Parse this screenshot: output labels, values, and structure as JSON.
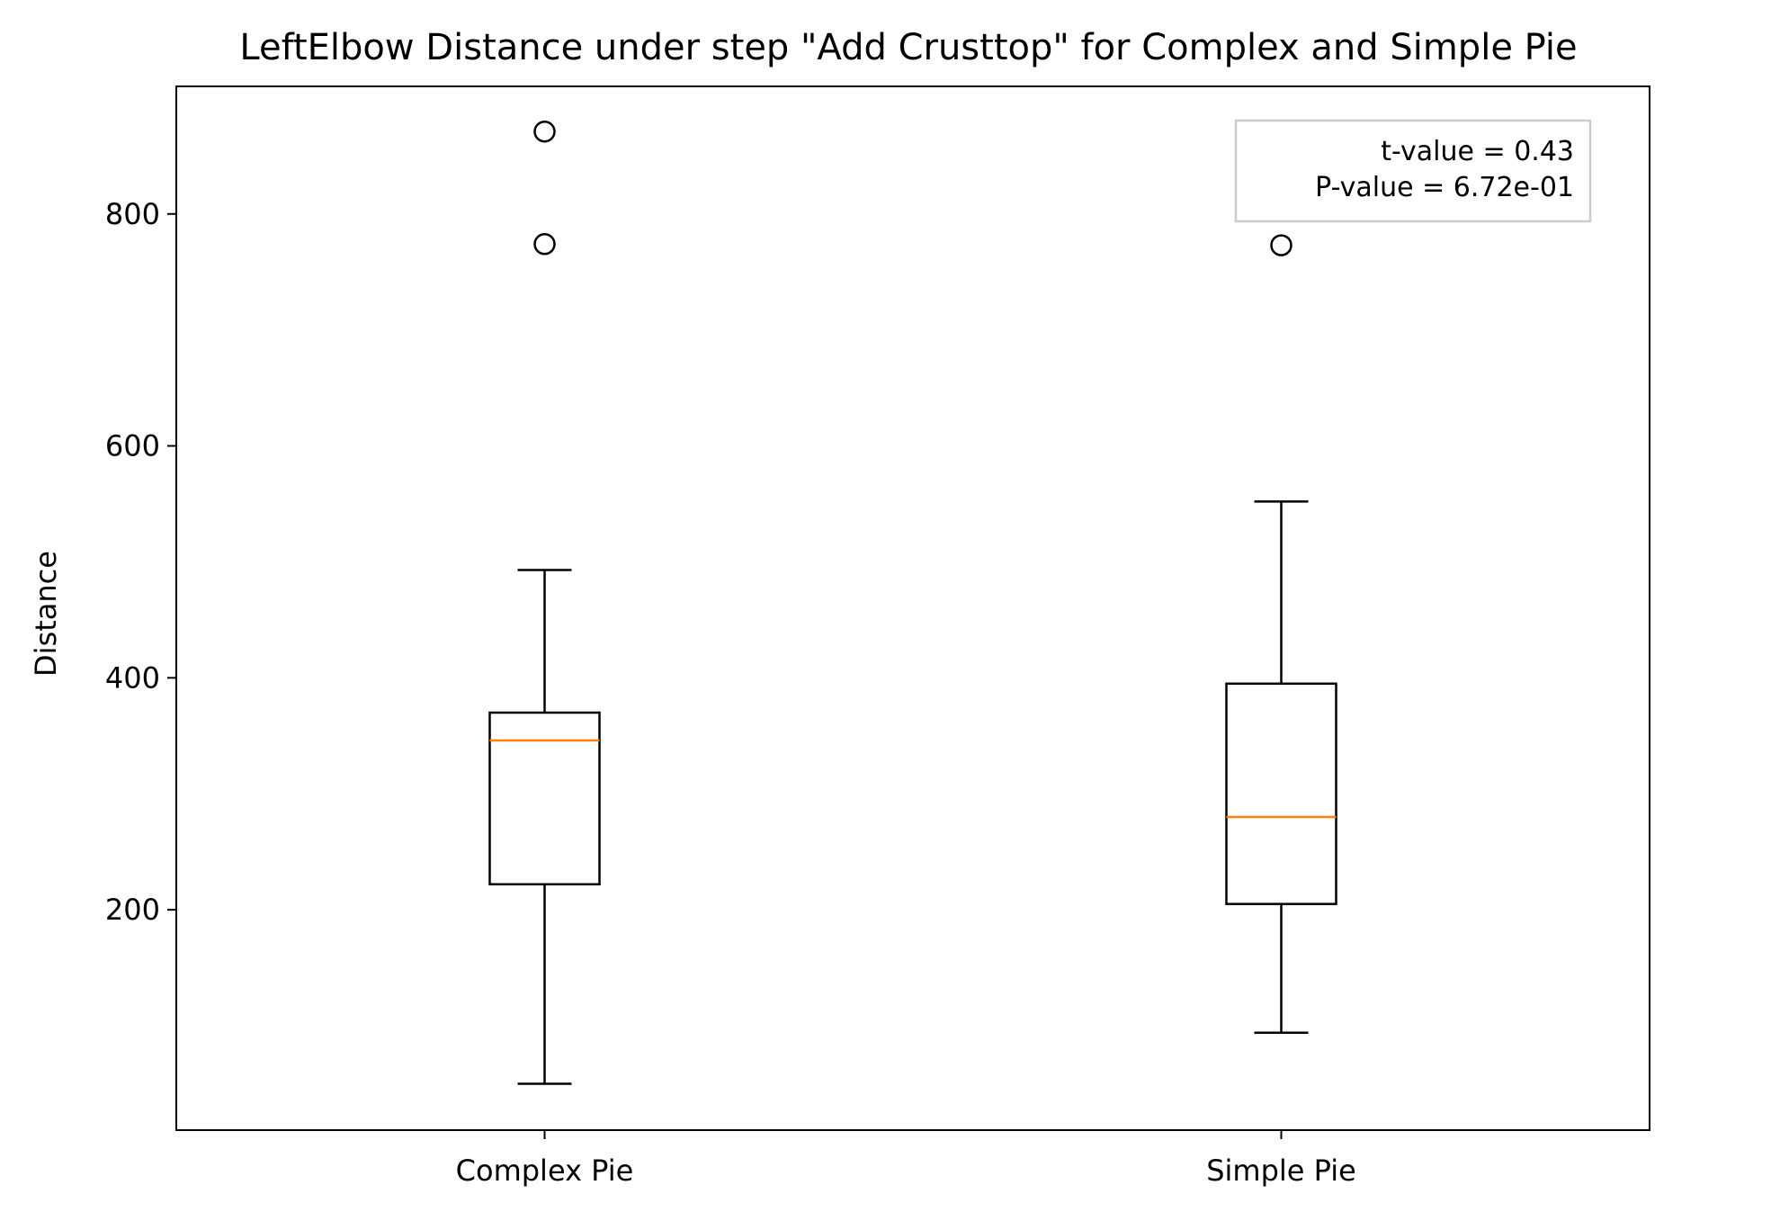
{
  "chart_data": {
    "type": "box",
    "title": "LeftElbow Distance under step \"Add Crusttop\" for Complex and Simple Pie",
    "xlabel": "",
    "ylabel": "Distance",
    "ylim": [
      10,
      910
    ],
    "yticks": [
      200,
      400,
      600,
      800
    ],
    "grid": false,
    "categories": [
      "Complex Pie",
      "Simple Pie"
    ],
    "boxes": [
      {
        "category": "Complex Pie",
        "whisker_low": 50,
        "q1": 222,
        "median": 346,
        "q3": 370,
        "whisker_high": 493,
        "outliers": [
          871,
          774
        ]
      },
      {
        "category": "Simple Pie",
        "whisker_low": 94,
        "q1": 205,
        "median": 280,
        "q3": 395,
        "whisker_high": 552,
        "outliers": [
          773
        ]
      }
    ],
    "annotation": {
      "lines": [
        "t-value = 0.43",
        "P-value = 6.72e-01"
      ],
      "placement": "top-right"
    },
    "colors": {
      "box": "#000000",
      "median": "#ff7f0e",
      "annotation_border": "#cccccc"
    }
  }
}
